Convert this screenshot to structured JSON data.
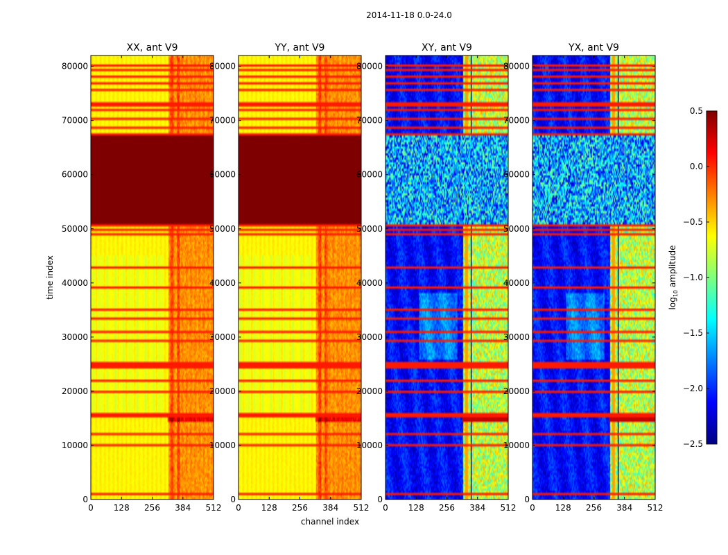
{
  "chart_data": {
    "type": "heatmap",
    "title": "2014-11-18 0.0-24.0",
    "xlabel": "channel index",
    "ylabel": "time index",
    "x_ticks": [
      0,
      128,
      256,
      384,
      512
    ],
    "y_ticks": [
      0,
      10000,
      20000,
      30000,
      40000,
      50000,
      60000,
      70000,
      80000
    ],
    "xlim": [
      0,
      512
    ],
    "ylim": [
      0,
      82000
    ],
    "panels": [
      {
        "title": "XX, ant V9",
        "polarization": "XX",
        "kind": "auto"
      },
      {
        "title": "YY, ant V9",
        "polarization": "YY",
        "kind": "auto"
      },
      {
        "title": "XY, ant V9",
        "polarization": "XY",
        "kind": "cross"
      },
      {
        "title": "YX, ant V9",
        "polarization": "YX",
        "kind": "cross"
      }
    ],
    "colorbar": {
      "label": "log₁₀ amplitude",
      "label_base": "log",
      "label_sub": "10",
      "label_rest": " amplitude",
      "min": -2.5,
      "max": 0.5,
      "ticks": [
        0.5,
        0.0,
        -0.5,
        -1.0,
        -1.5,
        -2.0,
        -2.5
      ],
      "tick_labels": [
        "0.5",
        "0.0",
        "−0.5",
        "−1.0",
        "−1.5",
        "−2.0",
        "−2.5"
      ],
      "colormap": "jet"
    },
    "features": {
      "flagged_time_block": [
        51000,
        67500
      ],
      "bright_channel_band": [
        325,
        512
      ],
      "strong_rfi_time_band": [
        14500,
        16000
      ],
      "auto_base_level": -0.6,
      "cross_base_level": -2.1
    }
  },
  "colors": {
    "jet_stops": [
      "#00007f",
      "#0000ff",
      "#007fff",
      "#00ffff",
      "#7fff7f",
      "#ffff00",
      "#ff7f00",
      "#ff0000",
      "#7f0000"
    ],
    "background": "#ffffff"
  }
}
